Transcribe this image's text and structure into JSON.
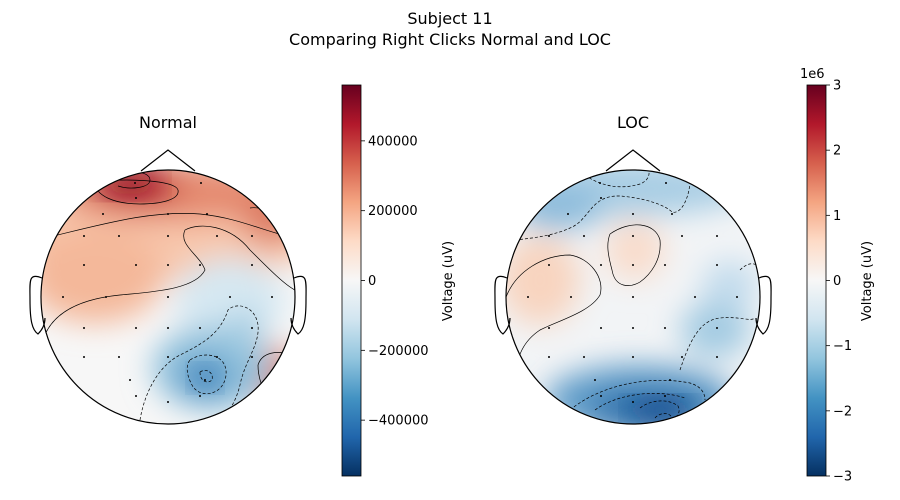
{
  "figure": {
    "title": "Subject 11",
    "subtitle": "Comparing Right Clicks Normal and LOC"
  },
  "chart_data": [
    {
      "type": "heatmap",
      "subtype": "eeg-topomap",
      "title": "Normal",
      "colormap": "RdBu_r",
      "colorbar": {
        "label": "Voltage (uV)",
        "range": [
          -560000,
          560000
        ],
        "ticks": [
          400000,
          200000,
          0,
          -200000,
          -400000
        ],
        "tick_labels": [
          "400000",
          "200000",
          "0",
          "−200000",
          "−400000"
        ],
        "offset_text": ""
      },
      "field_extremes": [
        {
          "region": "frontal-left-center",
          "polarity": "positive",
          "value": 560000
        },
        {
          "region": "frontal-right",
          "polarity": "positive",
          "value": 330000
        },
        {
          "region": "left-temporal",
          "polarity": "positive",
          "value": 150000
        },
        {
          "region": "right-temporal-posterior",
          "polarity": "positive",
          "value": 320000
        },
        {
          "region": "central-right",
          "polarity": "negative",
          "value": -120000
        },
        {
          "region": "parieto-occipital-right",
          "polarity": "negative",
          "value": -400000
        },
        {
          "region": "right-temporal",
          "polarity": "negative",
          "value": -200000
        }
      ]
    },
    {
      "type": "heatmap",
      "subtype": "eeg-topomap",
      "title": "LOC",
      "colormap": "RdBu_r",
      "colorbar": {
        "label": "Voltage (uV)",
        "range": [
          -3,
          3
        ],
        "ticks": [
          3,
          2,
          1,
          0,
          -1,
          -2,
          -3
        ],
        "tick_labels": [
          "3",
          "2",
          "1",
          "0",
          "−1",
          "−2",
          "−3"
        ],
        "offset_text": "1e6"
      },
      "field_extremes": [
        {
          "region": "frontal",
          "polarity": "negative",
          "value": -1.0
        },
        {
          "region": "central",
          "polarity": "positive",
          "value": 0.6
        },
        {
          "region": "left-temporal",
          "polarity": "positive",
          "value": 0.6
        },
        {
          "region": "right-temporal",
          "polarity": "negative",
          "value": -1.0
        },
        {
          "region": "occipital",
          "polarity": "negative",
          "value": -3.0
        }
      ]
    }
  ]
}
